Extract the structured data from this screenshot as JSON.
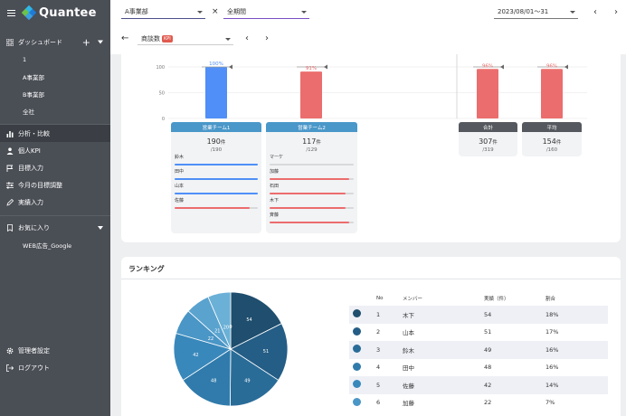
{
  "app": {
    "logo_text": "Quantee"
  },
  "sidebar": {
    "dashboard_label": "ダッシュボード",
    "dashboard_items": [
      "1",
      "A事業部",
      "B事業部",
      "全社"
    ],
    "menu": [
      {
        "label": "分析・比較",
        "icon": "chart-icon"
      },
      {
        "label": "個人KPI",
        "icon": "person-icon"
      },
      {
        "label": "目標入力",
        "icon": "flag-icon"
      },
      {
        "label": "今月の目標調整",
        "icon": "sliders-icon"
      },
      {
        "label": "実績入力",
        "icon": "pencil-icon"
      }
    ],
    "favorites_label": "お気に入り",
    "favorites_items": [
      "WEB広告_Google"
    ],
    "admin_label": "管理者設定",
    "logout_label": "ログアウト"
  },
  "topbar": {
    "division_select": "A事業部",
    "cross": "×",
    "period_select": "全期間",
    "date_range": "2023/08/01〜31"
  },
  "subbar": {
    "metric_label": "商談数",
    "kpi_badge": "KPI"
  },
  "colors": {
    "blue": "#4f8ff7",
    "red": "#ec6d6d",
    "header_blue": "#4a97c9",
    "header_dark": "#55595f"
  },
  "chart_data": {
    "type": "bar",
    "ylim": [
      0,
      100
    ],
    "yticks": [
      "100",
      "50",
      "0"
    ],
    "bars": [
      {
        "name": "営業チーム1",
        "value": 100,
        "label": "100%",
        "color": "#4f8ff7"
      },
      {
        "name": "営業チーム2",
        "value": 91,
        "label": "91%",
        "color": "#ec6d6d"
      },
      {
        "name": "合計",
        "value": 96,
        "label": "96%",
        "color": "#ec6d6d"
      },
      {
        "name": "平均",
        "value": 96,
        "label": "96%",
        "color": "#ec6d6d"
      }
    ]
  },
  "teams": [
    {
      "name": "営業チーム1",
      "total": "190",
      "unit": "件",
      "target": "/190",
      "members": [
        {
          "name": "鈴木",
          "progress": 1.0,
          "color": "#4f8ff7"
        },
        {
          "name": "田中",
          "progress": 1.0,
          "color": "#4f8ff7"
        },
        {
          "name": "山本",
          "progress": 1.0,
          "color": "#4f8ff7"
        },
        {
          "name": "佐藤",
          "progress": 0.9,
          "color": "#ec6d6d"
        }
      ]
    },
    {
      "name": "営業チーム2",
      "total": "117",
      "unit": "件",
      "target": "/129",
      "members": [
        {
          "name": "マーケ",
          "progress": 0.0,
          "color": "#ec6d6d"
        },
        {
          "name": "加藤",
          "progress": 0.95,
          "color": "#ec6d6d"
        },
        {
          "name": "石田",
          "progress": 0.9,
          "color": "#ec6d6d"
        },
        {
          "name": "木下",
          "progress": 0.9,
          "color": "#ec6d6d"
        },
        {
          "name": "斉藤",
          "progress": 0.95,
          "color": "#ec6d6d"
        }
      ]
    }
  ],
  "summaries": [
    {
      "name": "合計",
      "total": "307",
      "unit": "件",
      "target": "/319"
    },
    {
      "name": "平均",
      "total": "154",
      "unit": "件",
      "target": "/160"
    }
  ],
  "ranking": {
    "title": "ランキング",
    "columns": [
      "No",
      "メンバー",
      "実績（件）",
      "割合"
    ],
    "rows": [
      {
        "no": "1",
        "name": "木下",
        "value": "54",
        "share": "18%",
        "color": "#1f4e6e"
      },
      {
        "no": "2",
        "name": "山本",
        "value": "51",
        "share": "17%",
        "color": "#245d85"
      },
      {
        "no": "3",
        "name": "鈴木",
        "value": "49",
        "share": "16%",
        "color": "#2a6c98"
      },
      {
        "no": "4",
        "name": "田中",
        "value": "48",
        "share": "16%",
        "color": "#307bab"
      },
      {
        "no": "5",
        "name": "佐藤",
        "value": "42",
        "share": "14%",
        "color": "#3988bb"
      },
      {
        "no": "6",
        "name": "加藤",
        "value": "22",
        "share": "7%",
        "color": "#4a96c6"
      }
    ],
    "pie": [
      {
        "value": 54,
        "label": "54",
        "color": "#1f4e6e"
      },
      {
        "value": 51,
        "label": "51",
        "color": "#245d85"
      },
      {
        "value": 49,
        "label": "49",
        "color": "#2a6c98"
      },
      {
        "value": 48,
        "label": "48",
        "color": "#307bab"
      },
      {
        "value": 42,
        "label": "42",
        "color": "#3988bb"
      },
      {
        "value": 22,
        "label": "22",
        "color": "#4a96c6"
      },
      {
        "value": 21,
        "label": "21",
        "color": "#5aa3cf"
      },
      {
        "value": 20,
        "label": "20",
        "color": "#6bb0d6"
      },
      {
        "value": 0,
        "label": "0",
        "color": "#7cbde0"
      }
    ]
  }
}
